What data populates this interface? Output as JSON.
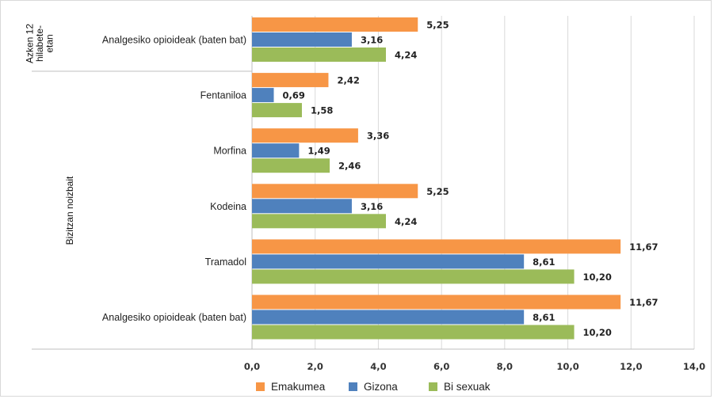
{
  "chart_data": {
    "type": "bar",
    "orientation": "horizontal",
    "groups": [
      {
        "label": [
          "Azken 12",
          "hilabete-",
          "etan"
        ],
        "categories": [
          "Analgesiko opioideak (baten bat)"
        ]
      },
      {
        "label": [
          "Bizitzan noizbait"
        ],
        "categories": [
          "Fentaniloa",
          "Morfina",
          "Kodeina",
          "Tramadol",
          "Analgesiko opioideak (baten bat)"
        ]
      }
    ],
    "categories": [
      "Analgesiko opioideak (baten bat)",
      "Fentaniloa",
      "Morfina",
      "Kodeina",
      "Tramadol",
      "Analgesiko opioideak (baten bat)"
    ],
    "series": [
      {
        "name": "Emakumea",
        "color": "#f79646",
        "values": [
          5.25,
          2.42,
          3.36,
          5.25,
          11.67,
          11.67
        ],
        "labels": [
          "5,25",
          "2,42",
          "3,36",
          "5,25",
          "11,67",
          "11,67"
        ]
      },
      {
        "name": "Gizona",
        "color": "#4f81bd",
        "values": [
          3.16,
          0.69,
          1.49,
          3.16,
          8.61,
          8.61
        ],
        "labels": [
          "3,16",
          "0,69",
          "1,49",
          "3,16",
          "8,61",
          "8,61"
        ]
      },
      {
        "name": "Bi sexuak",
        "color": "#9bbb59",
        "values": [
          4.24,
          1.58,
          2.46,
          4.24,
          10.2,
          10.2
        ],
        "labels": [
          "4,24",
          "1,58",
          "2,46",
          "4,24",
          "10,20",
          "10,20"
        ]
      }
    ],
    "xlim": [
      0,
      14
    ],
    "xticks": [
      "0,0",
      "2,0",
      "4,0",
      "6,0",
      "8,0",
      "10,0",
      "12,0",
      "14,0"
    ],
    "grid": true,
    "legend_position": "bottom"
  }
}
